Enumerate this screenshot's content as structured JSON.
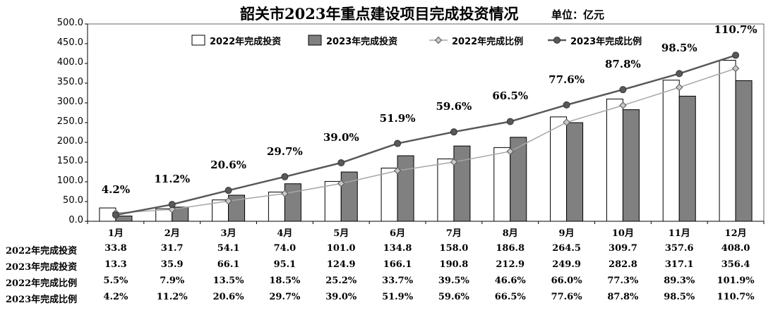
{
  "title": "韶关市2023年重点建设项目完成投资情况",
  "unit": "单位：亿元",
  "chart_data": {
    "type": "bar",
    "categories": [
      "1月",
      "2月",
      "3月",
      "4月",
      "5月",
      "6月",
      "7月",
      "8月",
      "9月",
      "10月",
      "11月",
      "12月"
    ],
    "ylim": [
      0,
      500
    ],
    "yticks": [
      "0.0",
      "50.0",
      "100.0",
      "150.0",
      "200.0",
      "250.0",
      "300.0",
      "350.0",
      "400.0",
      "450.0",
      "500.0"
    ],
    "grid": false,
    "legend_position": "top",
    "series": [
      {
        "name": "2022年完成投资",
        "kind": "bar",
        "color": "#ffffff",
        "values": [
          33.8,
          31.7,
          54.1,
          74.0,
          101.0,
          134.8,
          158.0,
          186.8,
          264.5,
          309.7,
          357.6,
          408.0
        ]
      },
      {
        "name": "2023年完成投资",
        "kind": "bar",
        "color": "#808080",
        "values": [
          13.3,
          35.9,
          66.1,
          95.1,
          124.9,
          166.1,
          190.8,
          212.9,
          249.9,
          282.8,
          317.1,
          356.4
        ]
      },
      {
        "name": "2022年完成比例",
        "kind": "line",
        "marker": "diamond",
        "color": "#a6a6a6",
        "values": [
          5.5,
          7.9,
          13.5,
          18.5,
          25.2,
          33.7,
          39.5,
          46.6,
          66.0,
          77.3,
          89.3,
          101.9
        ]
      },
      {
        "name": "2023年完成比例",
        "kind": "line",
        "marker": "circle",
        "color": "#595959",
        "values": [
          4.2,
          11.2,
          20.6,
          29.7,
          39.0,
          51.9,
          59.6,
          66.5,
          77.6,
          87.8,
          98.5,
          110.7
        ]
      }
    ],
    "line_annotations": [
      "4.2%",
      "11.2%",
      "20.6%",
      "29.7%",
      "39.0%",
      "51.9%",
      "59.6%",
      "66.5%",
      "77.6%",
      "87.8%",
      "98.5%",
      "110.7%"
    ]
  },
  "table": {
    "rows": [
      {
        "label": "2022年完成投资",
        "cells": [
          "33.8",
          "31.7",
          "54.1",
          "74.0",
          "101.0",
          "134.8",
          "158.0",
          "186.8",
          "264.5",
          "309.7",
          "357.6",
          "408.0"
        ]
      },
      {
        "label": "2023年完成投资",
        "cells": [
          "13.3",
          "35.9",
          "66.1",
          "95.1",
          "124.9",
          "166.1",
          "190.8",
          "212.9",
          "249.9",
          "282.8",
          "317.1",
          "356.4"
        ]
      },
      {
        "label": "2022年完成比例",
        "cells": [
          "5.5%",
          "7.9%",
          "13.5%",
          "18.5%",
          "25.2%",
          "33.7%",
          "39.5%",
          "46.6%",
          "66.0%",
          "77.3%",
          "89.3%",
          "101.9%"
        ]
      },
      {
        "label": "2023年完成比例",
        "cells": [
          "4.2%",
          "11.2%",
          "20.6%",
          "29.7%",
          "39.0%",
          "51.9%",
          "59.6%",
          "66.5%",
          "77.6%",
          "87.8%",
          "98.5%",
          "110.7%"
        ]
      }
    ]
  }
}
